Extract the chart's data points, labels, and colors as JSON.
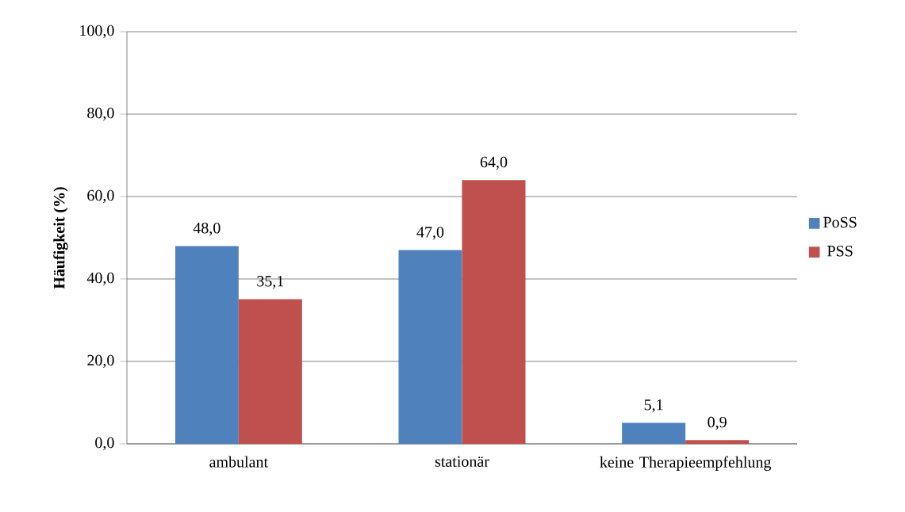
{
  "chart_data": {
    "type": "bar",
    "ylabel": "Häufigkeit (%)",
    "categories": [
      "ambulant",
      "stationär",
      "keine Therapieempfehlung"
    ],
    "series": [
      {
        "name": "PoSS",
        "color": "#4f81bd",
        "values": [
          48.0,
          47.0,
          5.1
        ],
        "value_labels": [
          "48,0",
          "47,0",
          "5,1"
        ]
      },
      {
        "name": "PSS",
        "color": "#c0504d",
        "values": [
          35.1,
          64.0,
          0.9
        ],
        "value_labels": [
          "35,1",
          "64,0",
          "0,9"
        ]
      }
    ],
    "ylim": [
      0,
      100
    ],
    "yticks": [
      {
        "value": 0,
        "label": "0,0"
      },
      {
        "value": 20,
        "label": "20,0"
      },
      {
        "value": 40,
        "label": "40,0"
      },
      {
        "value": 60,
        "label": "60,0"
      },
      {
        "value": 80,
        "label": "80,0"
      },
      {
        "value": 100,
        "label": "100,0"
      }
    ],
    "grid": "y",
    "legend": "right"
  }
}
